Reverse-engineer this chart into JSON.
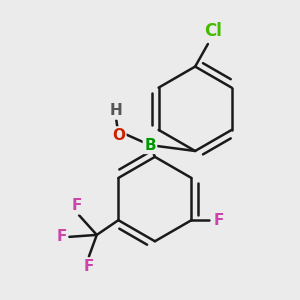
{
  "background_color": "#ebebeb",
  "bond_color": "#1a1a1a",
  "bond_width": 1.8,
  "atom_colors": {
    "B": "#009900",
    "O": "#cc2200",
    "Cl": "#44bb00",
    "F": "#cc44aa",
    "H": "#555555",
    "C": "#1a1a1a"
  },
  "font_size": 11,
  "xlim": [
    0,
    300
  ],
  "ylim": [
    0,
    300
  ]
}
